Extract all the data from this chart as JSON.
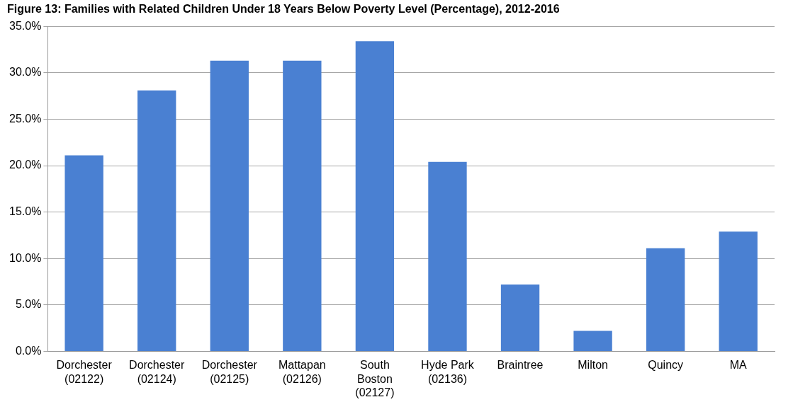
{
  "chart_data": {
    "type": "bar",
    "title": "Figure 13: Families with Related Children Under 18 Years Below Poverty Level (Percentage), 2012-2016",
    "categories": [
      "Dorchester (02122)",
      "Dorchester (02124)",
      "Dorchester (02125)",
      "Mattapan (02126)",
      "South Boston (02127)",
      "Hyde Park (02136)",
      "Braintree",
      "Milton",
      "Quincy",
      "MA"
    ],
    "values": [
      21.1,
      28.1,
      31.3,
      31.3,
      33.4,
      20.4,
      7.2,
      2.2,
      11.1,
      12.9
    ],
    "color": "#4a80d2",
    "ylim": [
      0,
      35
    ],
    "yticks": [
      {
        "value": 0,
        "label": "0.0%"
      },
      {
        "value": 5,
        "label": "5.0%"
      },
      {
        "value": 10,
        "label": "10.0%"
      },
      {
        "value": 15,
        "label": "15.0%"
      },
      {
        "value": 20,
        "label": "20.0%"
      },
      {
        "value": 25,
        "label": "25.0%"
      },
      {
        "value": 30,
        "label": "30.0%"
      },
      {
        "value": 35,
        "label": "35.0%"
      }
    ],
    "grid": "y",
    "legend": false
  }
}
